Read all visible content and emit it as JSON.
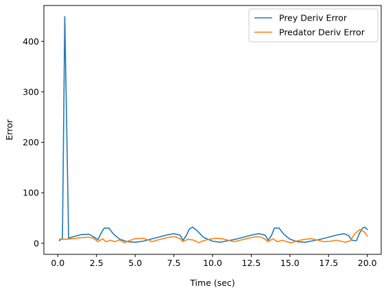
{
  "chart_data": {
    "type": "line",
    "title": "",
    "xlabel": "Time (sec)",
    "ylabel": "Error",
    "xlim": [
      -0.9,
      20.9
    ],
    "ylim": [
      -22,
      471
    ],
    "xticks": [
      0.0,
      2.5,
      5.0,
      7.5,
      10.0,
      12.5,
      15.0,
      17.5,
      20.0
    ],
    "xtick_labels": [
      "0.0",
      "2.5",
      "5.0",
      "7.5",
      "10.0",
      "12.5",
      "15.0",
      "17.5",
      "20.0"
    ],
    "yticks": [
      0,
      100,
      200,
      300,
      400
    ],
    "ytick_labels": [
      "0",
      "100",
      "200",
      "300",
      "400"
    ],
    "grid": false,
    "legend_position": "top-right",
    "series": [
      {
        "name": "Prey Deriv Error",
        "color": "#1f77b4",
        "x": [
          0.1,
          0.3,
          0.45,
          0.7,
          1.0,
          1.5,
          2.0,
          2.3,
          2.6,
          2.8,
          3.0,
          3.3,
          3.6,
          4.0,
          4.5,
          5.0,
          5.5,
          6.0,
          6.5,
          7.0,
          7.5,
          7.9,
          8.1,
          8.3,
          8.5,
          8.7,
          9.0,
          9.4,
          10.0,
          10.5,
          11.0,
          11.5,
          12.0,
          12.5,
          13.0,
          13.4,
          13.6,
          13.8,
          14.0,
          14.3,
          14.6,
          15.0,
          15.5,
          16.0,
          16.5,
          17.0,
          17.5,
          18.0,
          18.5,
          18.8,
          19.0,
          19.3,
          19.5,
          19.7,
          19.85,
          20.0
        ],
        "y": [
          5,
          10,
          449,
          10,
          13,
          17,
          18,
          13,
          7,
          20,
          30,
          30,
          18,
          8,
          3,
          2,
          4,
          8,
          12,
          16,
          19,
          16,
          6,
          15,
          28,
          32,
          25,
          12,
          4,
          2,
          5,
          8,
          12,
          16,
          19,
          16,
          6,
          15,
          30,
          30,
          18,
          8,
          3,
          2,
          5,
          8,
          12,
          16,
          19,
          15,
          6,
          5,
          20,
          30,
          32,
          27
        ]
      },
      {
        "name": "Predator Deriv Error",
        "color": "#ff7f0e",
        "x": [
          0.1,
          0.5,
          1.0,
          1.5,
          2.0,
          2.3,
          2.6,
          2.9,
          3.1,
          3.4,
          3.7,
          4.0,
          4.3,
          4.6,
          5.0,
          5.5,
          5.8,
          6.1,
          6.4,
          6.8,
          7.2,
          7.6,
          7.9,
          8.1,
          8.4,
          8.8,
          9.1,
          9.4,
          9.8,
          10.2,
          10.6,
          11.0,
          11.4,
          11.8,
          12.2,
          12.6,
          13.0,
          13.3,
          13.6,
          13.9,
          14.2,
          14.5,
          14.8,
          15.1,
          15.5,
          16.0,
          16.4,
          16.8,
          17.2,
          17.6,
          18.0,
          18.3,
          18.6,
          18.9,
          19.2,
          19.5,
          19.8,
          20.0
        ],
        "y": [
          8,
          8,
          9,
          11,
          12,
          10,
          3,
          9,
          3,
          6,
          3,
          7,
          1,
          5,
          9,
          10,
          7,
          3,
          6,
          9,
          12,
          13,
          9,
          3,
          8,
          6,
          1,
          5,
          8,
          10,
          9,
          6,
          3,
          6,
          9,
          12,
          13,
          10,
          3,
          9,
          3,
          6,
          3,
          1,
          5,
          8,
          9,
          6,
          3,
          4,
          6,
          4,
          2,
          5,
          19,
          27,
          23,
          14
        ]
      }
    ]
  }
}
